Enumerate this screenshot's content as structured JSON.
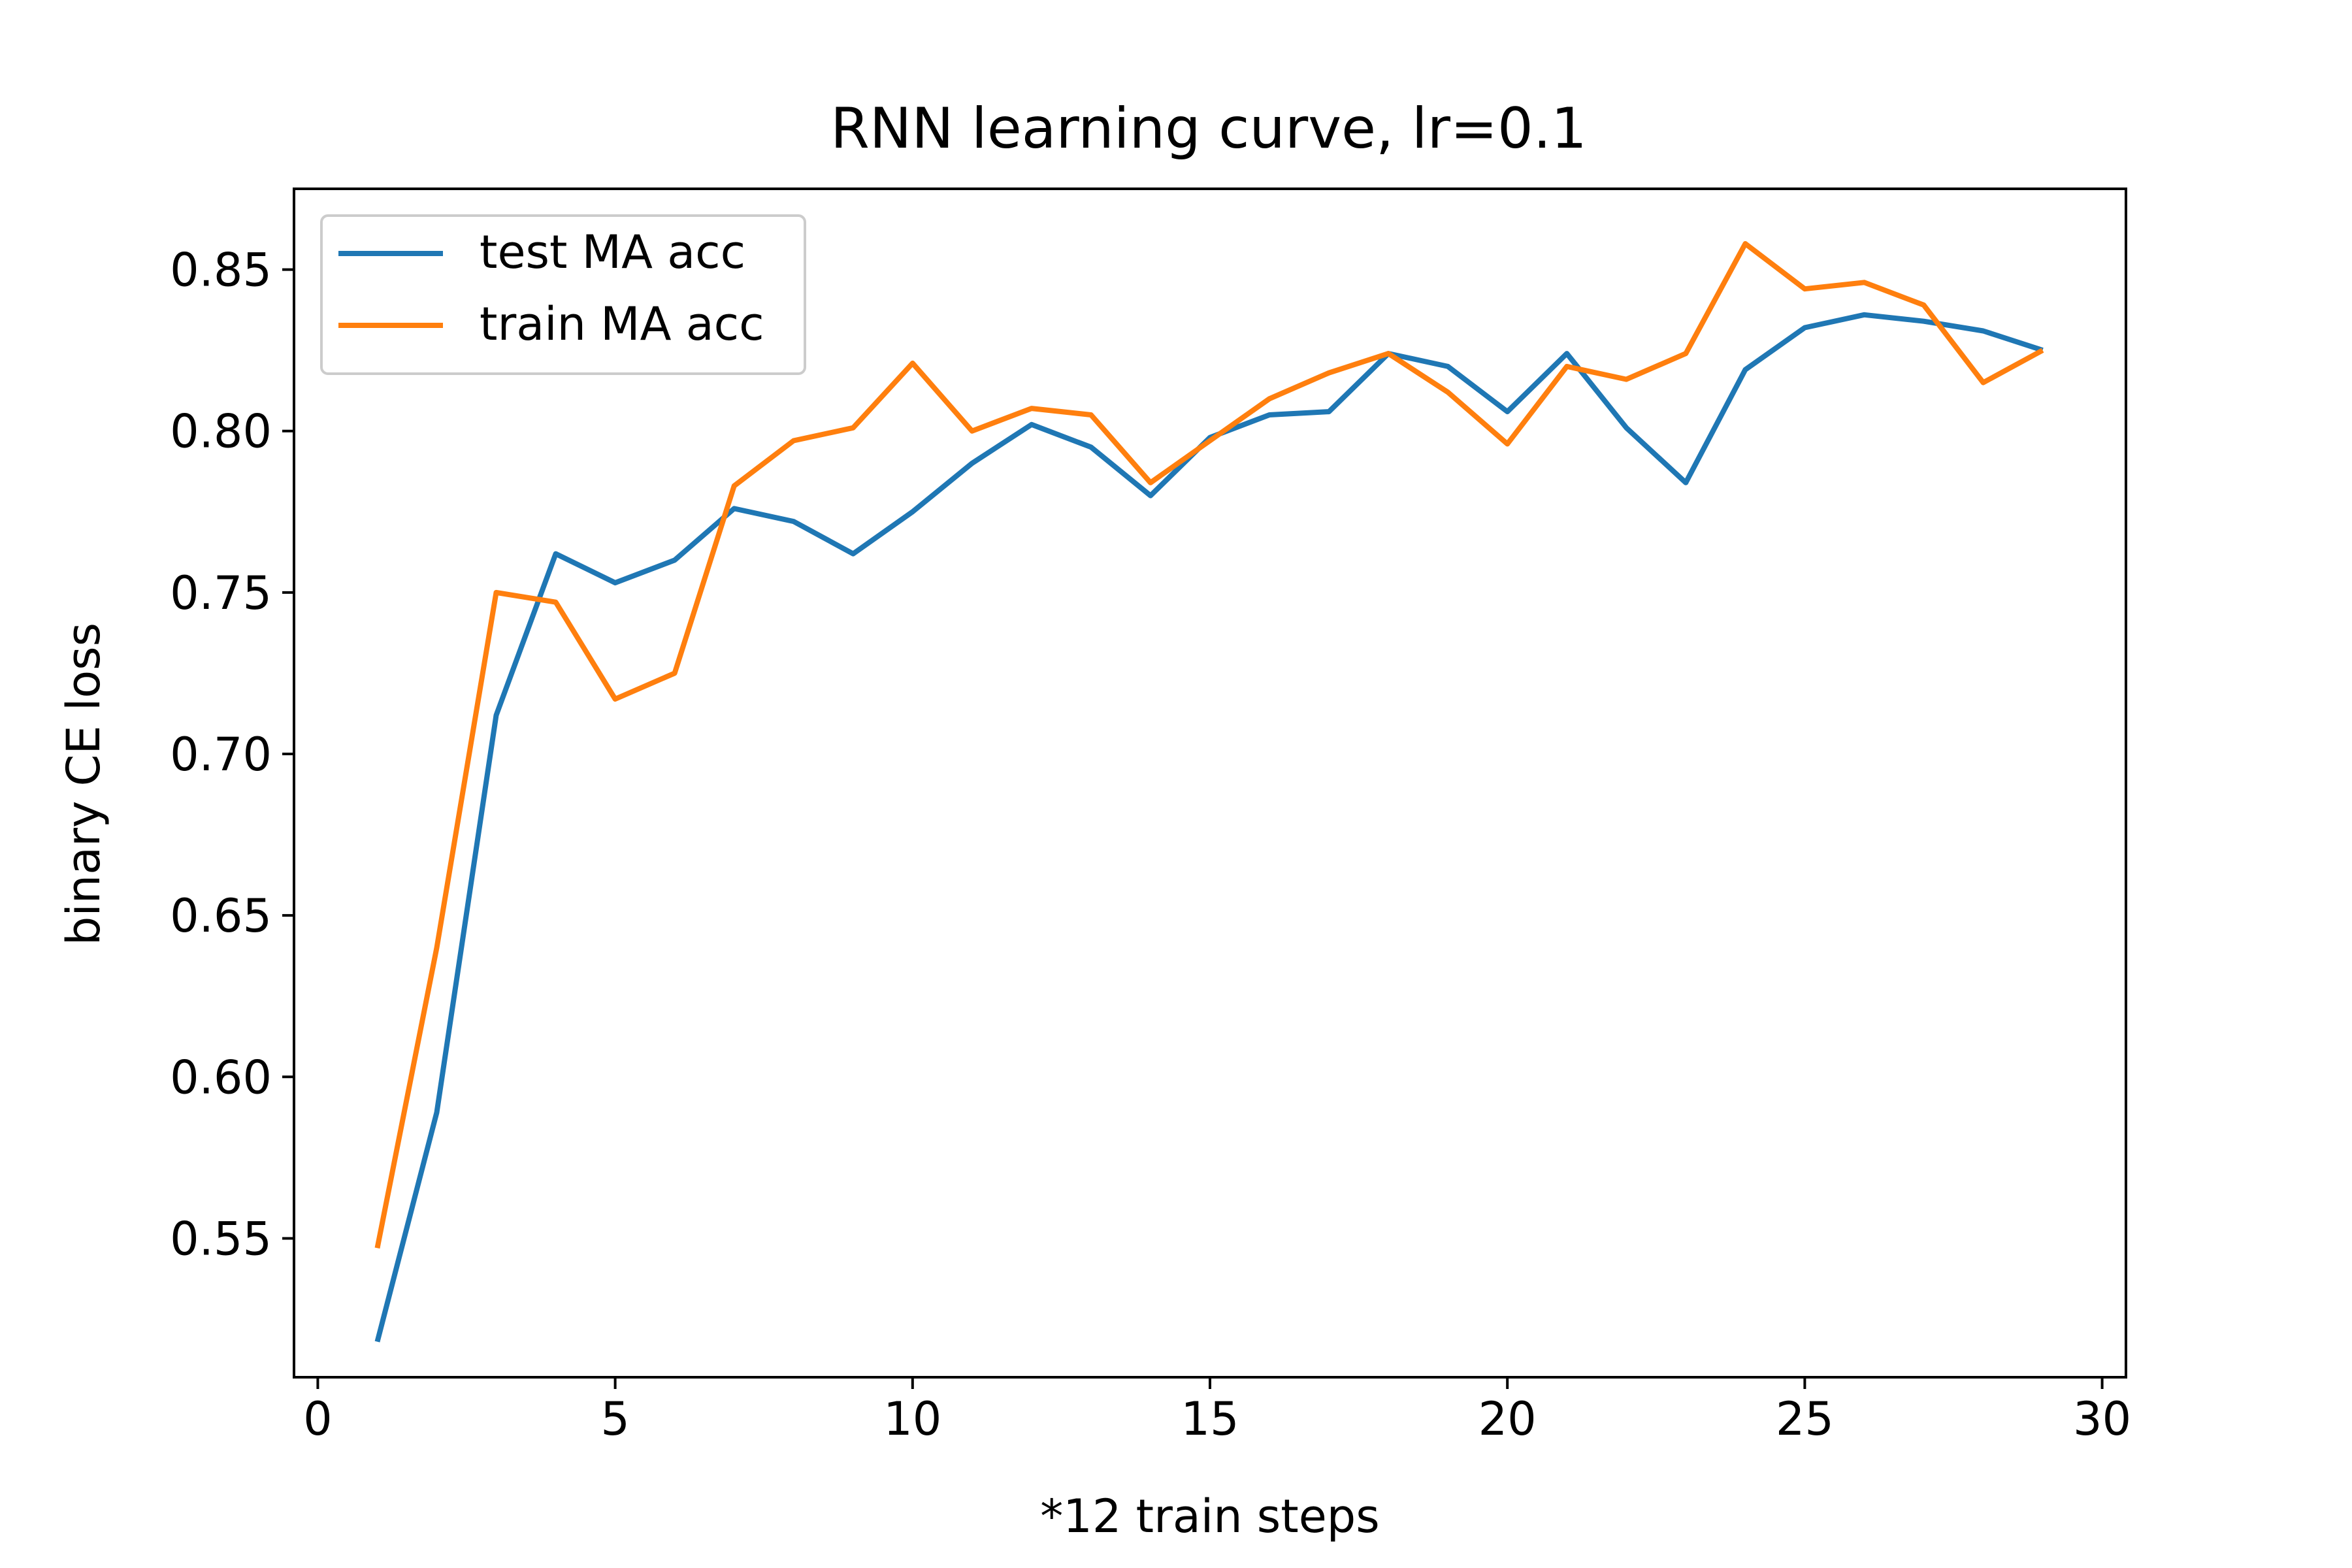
{
  "chart_data": {
    "type": "line",
    "title": "RNN learning curve, lr=0.1",
    "xlabel": "*12 train steps",
    "ylabel": "binary CE loss",
    "xlim": [
      -0.4,
      30.4
    ],
    "ylim": [
      0.507,
      0.875
    ],
    "xticks": [
      0,
      5,
      10,
      15,
      20,
      25,
      30
    ],
    "xtick_labels": [
      "0",
      "5",
      "10",
      "15",
      "20",
      "25",
      "30"
    ],
    "yticks": [
      0.55,
      0.6,
      0.65,
      0.7,
      0.75,
      0.8,
      0.85
    ],
    "ytick_labels": [
      "0.55",
      "0.60",
      "0.65",
      "0.70",
      "0.75",
      "0.80",
      "0.85"
    ],
    "grid": false,
    "legend_position": "top-left",
    "x": [
      1,
      2,
      3,
      4,
      5,
      6,
      7,
      8,
      9,
      10,
      11,
      12,
      13,
      14,
      15,
      16,
      17,
      18,
      19,
      20,
      21,
      22,
      23,
      24,
      25,
      26,
      27,
      28,
      29
    ],
    "series": [
      {
        "name": "test MA acc",
        "color": "#1f77b4",
        "values": [
          0.518,
          0.589,
          0.712,
          0.762,
          0.753,
          0.76,
          0.776,
          0.772,
          0.762,
          0.775,
          0.79,
          0.802,
          0.795,
          0.78,
          0.798,
          0.805,
          0.806,
          0.824,
          0.82,
          0.806,
          0.824,
          0.801,
          0.784,
          0.819,
          0.832,
          0.836,
          0.834,
          0.831,
          0.825
        ]
      },
      {
        "name": "train MA acc",
        "color": "#ff7f0e",
        "values": [
          0.547,
          0.64,
          0.75,
          0.747,
          0.717,
          0.725,
          0.783,
          0.797,
          0.801,
          0.821,
          0.8,
          0.807,
          0.805,
          0.784,
          0.797,
          0.81,
          0.818,
          0.824,
          0.812,
          0.796,
          0.82,
          0.816,
          0.824,
          0.858,
          0.844,
          0.846,
          0.839,
          0.815,
          0.825
        ]
      }
    ]
  }
}
